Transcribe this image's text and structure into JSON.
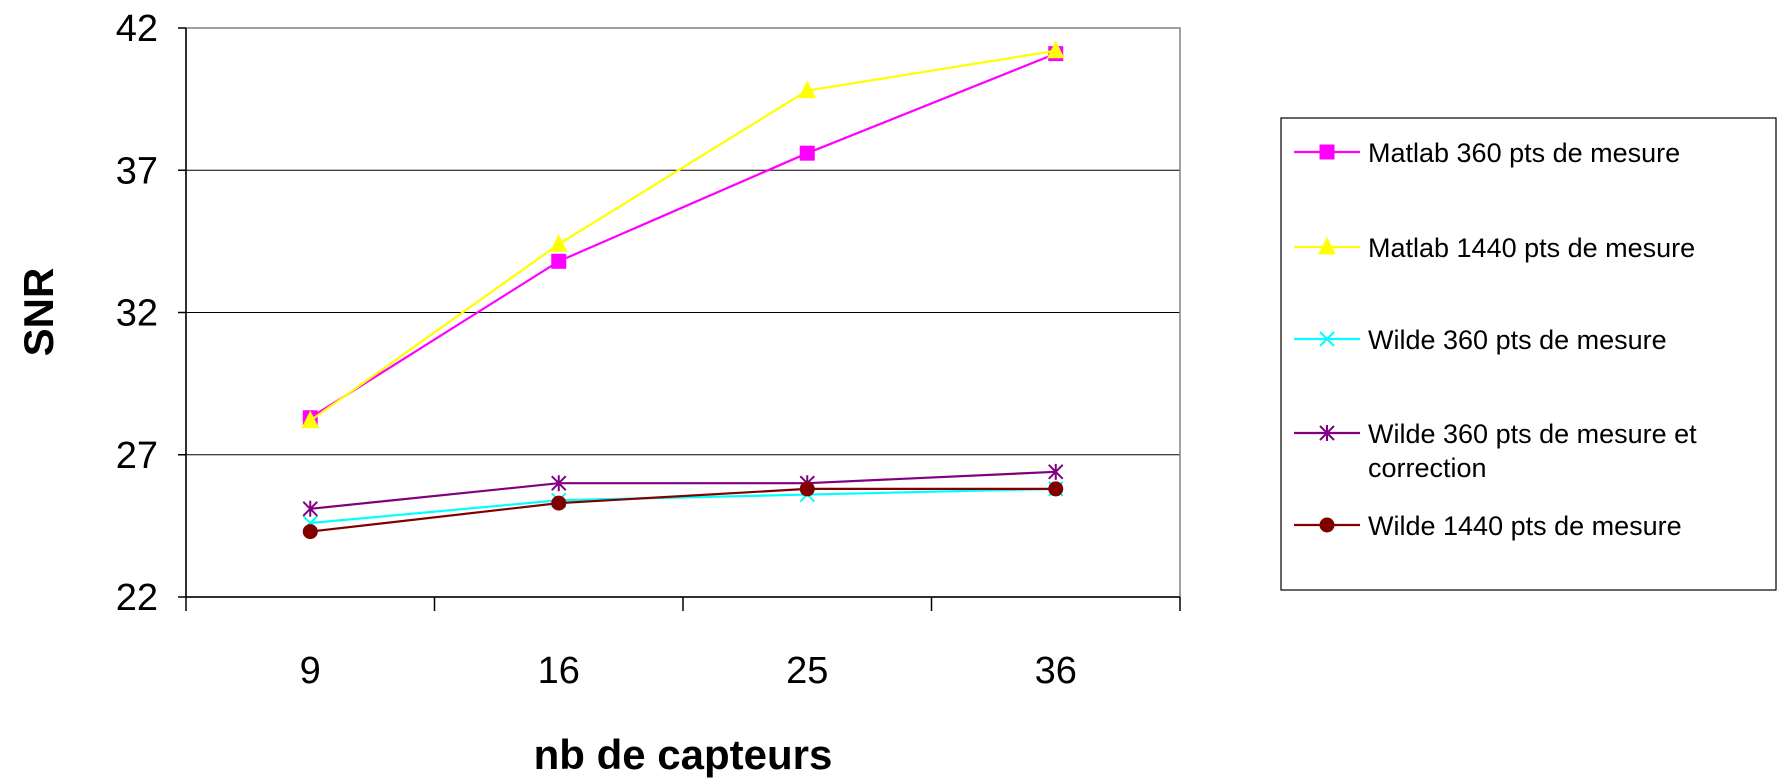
{
  "chart_data": {
    "type": "line",
    "title": "",
    "xlabel": "nb de capteurs",
    "ylabel": "SNR",
    "categories": [
      "9",
      "16",
      "25",
      "36"
    ],
    "ylim": [
      22,
      42
    ],
    "yticks": [
      22,
      27,
      32,
      37,
      42
    ],
    "grid": true,
    "legend_position": "right",
    "series": [
      {
        "name": "Matlab 360 pts de mesure",
        "color": "#ff00ff",
        "marker": "square",
        "values": [
          28.3,
          33.8,
          37.6,
          41.1
        ]
      },
      {
        "name": "Matlab 1440 pts de mesure",
        "color": "#ffff00",
        "marker": "triangle",
        "values": [
          28.2,
          34.4,
          39.8,
          41.2
        ]
      },
      {
        "name": "Wilde 360 pts de mesure",
        "color": "#00ffff",
        "marker": "x",
        "values": [
          24.6,
          25.4,
          25.6,
          25.8
        ]
      },
      {
        "name": "Wilde 360 pts de mesure et correction",
        "color": "#800080",
        "marker": "star",
        "values": [
          25.1,
          26.0,
          26.0,
          26.4
        ]
      },
      {
        "name": "Wilde 1440 pts de mesure",
        "color": "#800000",
        "marker": "circle",
        "values": [
          24.3,
          25.3,
          25.8,
          25.8
        ]
      }
    ]
  }
}
